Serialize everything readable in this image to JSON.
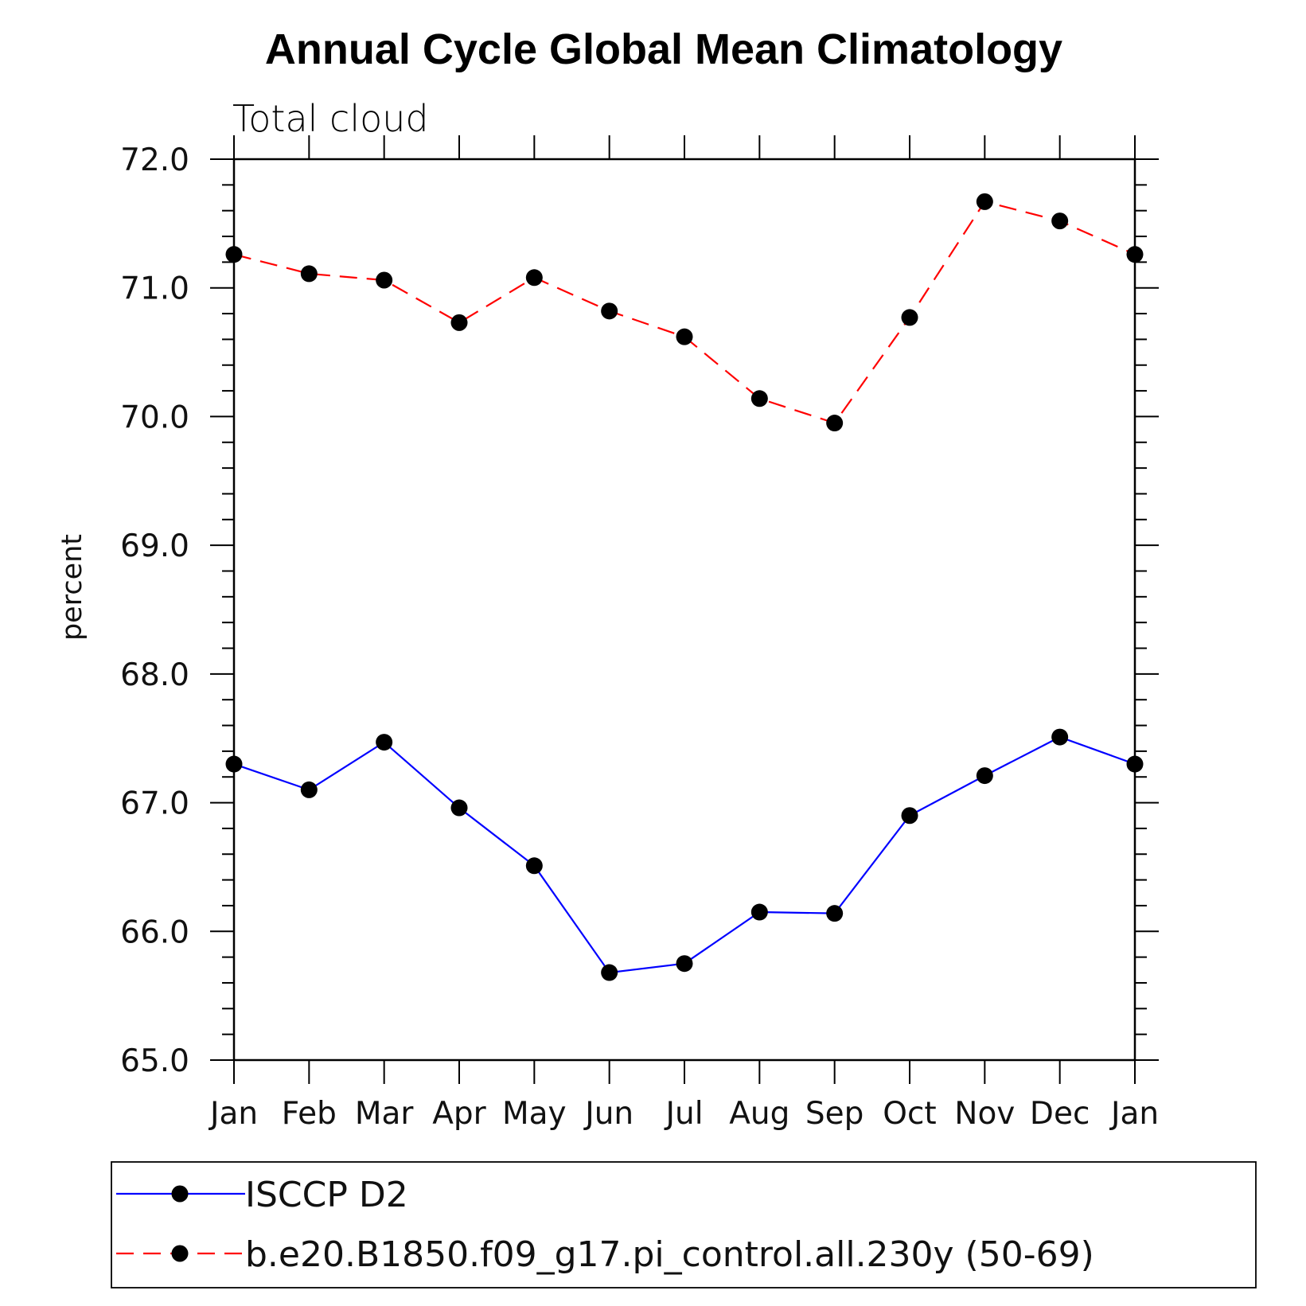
{
  "chart_data": {
    "type": "line",
    "title": "Annual Cycle Global Mean Climatology",
    "subtitle": "Total cloud",
    "ylabel": "percent",
    "xlabel": "",
    "categories": [
      "Jan",
      "Feb",
      "Mar",
      "Apr",
      "May",
      "Jun",
      "Jul",
      "Aug",
      "Sep",
      "Oct",
      "Nov",
      "Dec",
      "Jan"
    ],
    "ylim": [
      65.0,
      72.0
    ],
    "yticks": [
      "65.0",
      "66.0",
      "67.0",
      "68.0",
      "69.0",
      "70.0",
      "71.0",
      "72.0"
    ],
    "grid": false,
    "legend_position": "bottom",
    "series": [
      {
        "name": "ISCCP D2",
        "color": "#0000ff",
        "line_style": "solid",
        "marker": "filled-circle",
        "values": [
          67.3,
          67.1,
          67.47,
          66.96,
          66.51,
          65.68,
          65.75,
          66.15,
          66.14,
          66.9,
          67.21,
          67.51,
          67.3
        ]
      },
      {
        "name": "b.e20.B1850.f09_g17.pi_control.all.230y (50-69)",
        "color": "#ff0000",
        "line_style": "dashed",
        "marker": "filled-circle",
        "values": [
          71.26,
          71.11,
          71.06,
          70.73,
          71.08,
          70.82,
          70.62,
          70.14,
          69.95,
          70.77,
          71.67,
          71.52,
          71.26
        ]
      }
    ]
  }
}
